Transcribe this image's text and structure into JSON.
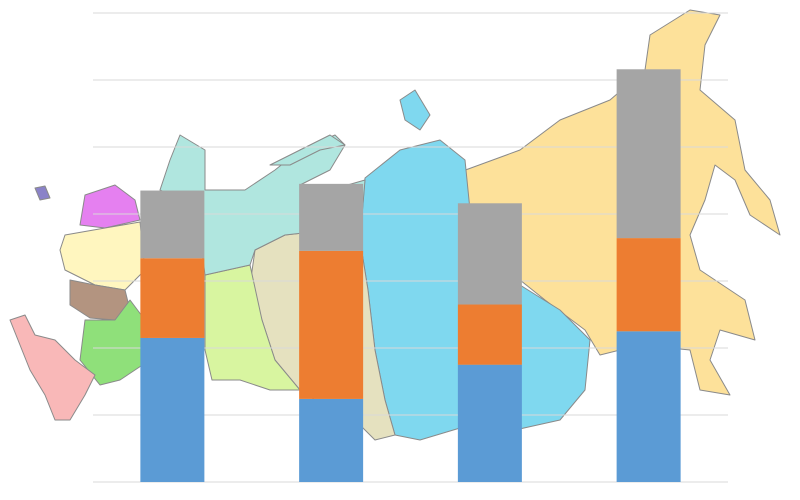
{
  "chart_data": {
    "type": "stacked-bar",
    "categories": [
      null,
      null,
      null,
      null
    ],
    "series": [
      {
        "color": "#5b9bd5",
        "values": [
          2.15,
          1.24,
          1.75,
          2.25
        ]
      },
      {
        "color": "#ed7d31",
        "values": [
          1.19,
          2.21,
          0.9,
          1.39
        ]
      },
      {
        "color": "#a5a5a5",
        "values": [
          1.01,
          1.0,
          1.51,
          2.52
        ]
      }
    ],
    "ylim": [
      0,
      7
    ],
    "yticks": [
      0,
      1,
      2,
      3,
      4,
      5,
      6,
      7
    ],
    "grid": true
  }
}
